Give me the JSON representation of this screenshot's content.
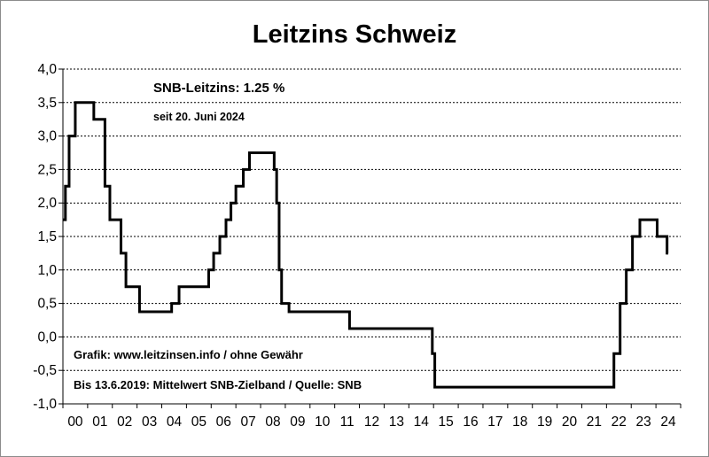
{
  "chart_data": {
    "type": "line",
    "step": true,
    "title": "Leitzins Schweiz",
    "xlabel": "",
    "ylabel": "",
    "xlim": [
      0,
      25
    ],
    "ylim": [
      -1.0,
      4.0
    ],
    "grid": true,
    "x_ticks": [
      0,
      1,
      2,
      3,
      4,
      5,
      6,
      7,
      8,
      9,
      10,
      11,
      12,
      13,
      14,
      15,
      16,
      17,
      18,
      19,
      20,
      21,
      22,
      23,
      24
    ],
    "x_tick_labels": [
      "00",
      "01",
      "02",
      "03",
      "04",
      "05",
      "06",
      "07",
      "08",
      "09",
      "10",
      "11",
      "12",
      "13",
      "14",
      "15",
      "16",
      "17",
      "18",
      "19",
      "20",
      "21",
      "22",
      "23",
      "24"
    ],
    "y_ticks": [
      -1.0,
      -0.5,
      0.0,
      0.5,
      1.0,
      1.5,
      2.0,
      2.5,
      3.0,
      3.5,
      4.0
    ],
    "y_tick_labels": [
      "-1,0",
      "-0,5",
      "0,0",
      "0,5",
      "1,0",
      "1,5",
      "2,0",
      "2,5",
      "3,0",
      "3,5",
      "4,0"
    ],
    "annotations": [
      "SNB-Leitzins: 1.25 %",
      "seit 20. Juni 2024",
      "Grafik: www.leitzinsen.info / ohne Gewähr",
      "Bis 13.6.2019: Mittelwert SNB-Zielband / Quelle: SNB"
    ],
    "series": [
      {
        "color": "#000000",
        "points": [
          [
            0.0,
            1.75
          ],
          [
            0.1,
            2.25
          ],
          [
            0.25,
            3.0
          ],
          [
            0.5,
            3.5
          ],
          [
            1.25,
            3.25
          ],
          [
            1.7,
            2.25
          ],
          [
            1.9,
            1.75
          ],
          [
            2.35,
            1.25
          ],
          [
            2.55,
            0.75
          ],
          [
            3.1,
            0.375
          ],
          [
            4.4,
            0.5
          ],
          [
            4.7,
            0.75
          ],
          [
            5.9,
            1.0
          ],
          [
            6.1,
            1.25
          ],
          [
            6.35,
            1.5
          ],
          [
            6.6,
            1.75
          ],
          [
            6.8,
            2.0
          ],
          [
            7.0,
            2.25
          ],
          [
            7.3,
            2.5
          ],
          [
            7.55,
            2.75
          ],
          [
            8.55,
            2.5
          ],
          [
            8.65,
            2.0
          ],
          [
            8.75,
            1.0
          ],
          [
            8.85,
            0.5
          ],
          [
            9.15,
            0.375
          ],
          [
            11.6,
            0.125
          ],
          [
            14.95,
            -0.25
          ],
          [
            15.05,
            -0.75
          ],
          [
            22.3,
            -0.25
          ],
          [
            22.55,
            0.5
          ],
          [
            22.8,
            1.0
          ],
          [
            23.05,
            1.5
          ],
          [
            23.35,
            1.75
          ],
          [
            24.05,
            1.5
          ],
          [
            24.45,
            1.25
          ],
          [
            24.5,
            1.25
          ]
        ]
      }
    ]
  }
}
